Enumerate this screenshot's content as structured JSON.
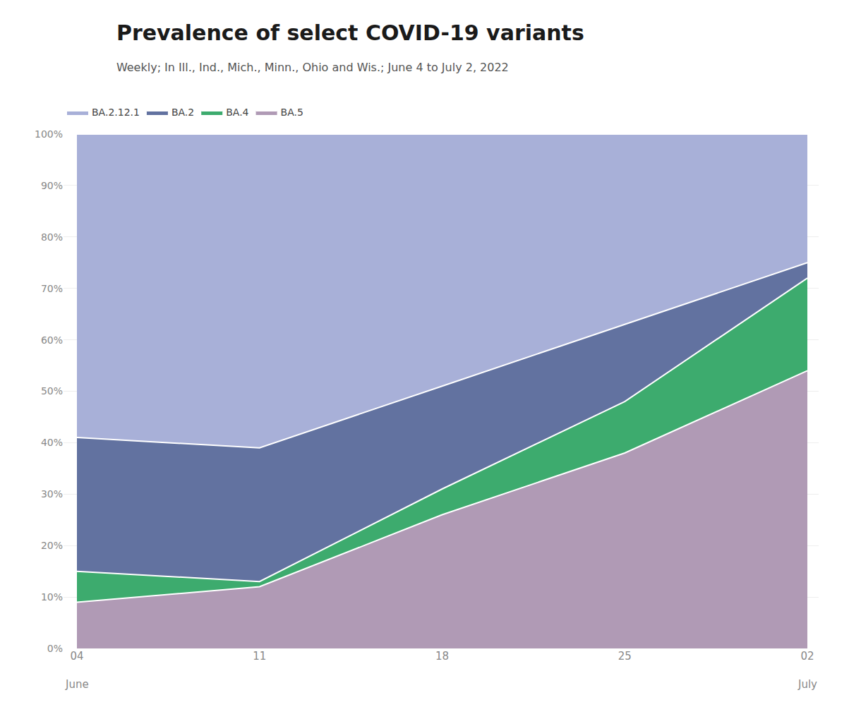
{
  "chart_data": {
    "type": "area",
    "title": "Prevalence of select COVID-19 variants",
    "subtitle": "Weekly; In Ill., Ind., Mich., Minn., Ohio and Wis.; June 4 to July 2, 2022",
    "categories": [
      "04",
      "11",
      "18",
      "25",
      "02"
    ],
    "series": [
      {
        "name": "BA.5",
        "color": "#b09ab5",
        "values": [
          9,
          12,
          26,
          38,
          54
        ]
      },
      {
        "name": "BA.4",
        "color": "#3dab6e",
        "values": [
          6,
          1,
          5,
          10,
          18
        ]
      },
      {
        "name": "BA.2",
        "color": "#6272a0",
        "values": [
          26,
          26,
          20,
          15,
          3
        ]
      },
      {
        "name": "BA.2.12.1",
        "color": "#a8b0d8",
        "values": [
          59,
          61,
          49,
          37,
          25
        ]
      }
    ],
    "stacked": true,
    "ylim": [
      0,
      100
    ],
    "yticks": [
      {
        "value": 0,
        "label": "0%"
      },
      {
        "value": 10,
        "label": "10%"
      },
      {
        "value": 20,
        "label": "20%"
      },
      {
        "value": 30,
        "label": "30%"
      },
      {
        "value": 40,
        "label": "40%"
      },
      {
        "value": 50,
        "label": "50%"
      },
      {
        "value": 60,
        "label": "60%"
      },
      {
        "value": 70,
        "label": "70%"
      },
      {
        "value": 80,
        "label": "80%"
      },
      {
        "value": 90,
        "label": "90%"
      },
      {
        "value": 100,
        "label": "100%"
      }
    ],
    "grid": true,
    "legend": "top",
    "annotations": [
      {
        "text": "June",
        "x": "04"
      },
      {
        "text": "July",
        "x": "02"
      }
    ]
  }
}
